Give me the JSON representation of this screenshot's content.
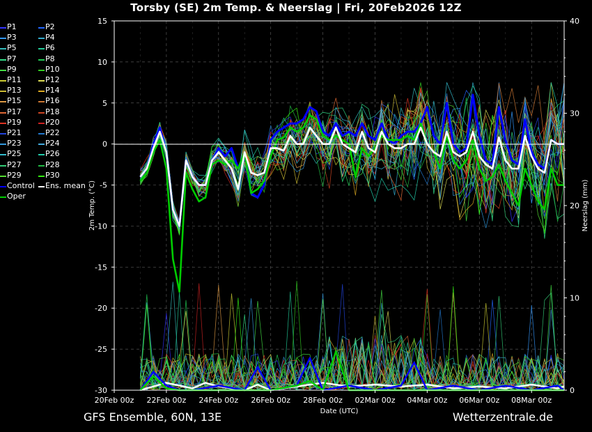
{
  "title": "Torsby  (SE)  2m Temp. & Neerslag | Fri, 20Feb2026 12Z",
  "footer_left": "GFS Ensemble, 60N, 13E",
  "footer_right": "Wetterzentrale.de",
  "chart_data": {
    "type": "line",
    "title": "Torsby  (SE)  2m Temp. & Neerslag | Fri, 20Feb2026 12Z",
    "xlabel": "Date (UTC)",
    "ylabel": "2m Temp. (°C)",
    "y2label": "Neerslag (mm)",
    "ylim": [
      -30,
      15
    ],
    "y2lim": [
      0,
      40
    ],
    "x_ticks": [
      "20Feb 00z",
      "22Feb 00z",
      "24Feb 00z",
      "26Feb 00z",
      "28Feb 00z",
      "02Mar 00z",
      "04Mar 00z",
      "06Mar 00z",
      "08Mar 00z"
    ],
    "y_ticks": [
      15,
      10,
      5,
      0,
      -5,
      -10,
      -15,
      -20,
      -25,
      -30
    ],
    "y2_ticks": [
      40,
      30,
      20,
      10,
      0
    ],
    "grid": true,
    "legend_position": "left",
    "legend": [
      {
        "name": "P1",
        "color": "#3333ff"
      },
      {
        "name": "P2",
        "color": "#2266ff"
      },
      {
        "name": "P3",
        "color": "#3399ff"
      },
      {
        "name": "P4",
        "color": "#33aacc"
      },
      {
        "name": "P5",
        "color": "#33bbbb"
      },
      {
        "name": "P6",
        "color": "#22cc99"
      },
      {
        "name": "P7",
        "color": "#33dd88"
      },
      {
        "name": "P8",
        "color": "#22cc55"
      },
      {
        "name": "P9",
        "color": "#44dd44"
      },
      {
        "name": "P10",
        "color": "#33cc22"
      },
      {
        "name": "P11",
        "color": "#cccc33"
      },
      {
        "name": "P12",
        "color": "#dddd55"
      },
      {
        "name": "P13",
        "color": "#ccbb33"
      },
      {
        "name": "P14",
        "color": "#ddaa22"
      },
      {
        "name": "P15",
        "color": "#dd9944"
      },
      {
        "name": "P16",
        "color": "#cc7733"
      },
      {
        "name": "P17",
        "color": "#dd6633"
      },
      {
        "name": "P18",
        "color": "#cc4422"
      },
      {
        "name": "P19",
        "color": "#dd3322"
      },
      {
        "name": "P20",
        "color": "#cc2222"
      },
      {
        "name": "P21",
        "color": "#2244dd"
      },
      {
        "name": "P22",
        "color": "#2277cc"
      },
      {
        "name": "P23",
        "color": "#3399dd"
      },
      {
        "name": "P24",
        "color": "#44aadd"
      },
      {
        "name": "P25",
        "color": "#33bbcc"
      },
      {
        "name": "P26",
        "color": "#22ccaa"
      },
      {
        "name": "P27",
        "color": "#33cc77"
      },
      {
        "name": "P28",
        "color": "#22bb44"
      },
      {
        "name": "P29",
        "color": "#55dd33"
      },
      {
        "name": "P30",
        "color": "#33ee11"
      },
      {
        "name": "Control",
        "color": "#0000ff"
      },
      {
        "name": "Ens. mean",
        "color": "#ffffff"
      },
      {
        "name": "Oper",
        "color": "#00cc00"
      }
    ],
    "x_range_days": [
      0,
      17.25
    ],
    "series": [
      {
        "name": "Ens. mean",
        "color": "#ffffff",
        "x": [
          1.0,
          1.25,
          1.5,
          1.75,
          2.0,
          2.25,
          2.5,
          2.75,
          3.0,
          3.25,
          3.5,
          3.75,
          4.0,
          4.25,
          4.5,
          4.75,
          5.0,
          5.25,
          5.5,
          5.75,
          6.0,
          6.25,
          6.5,
          6.75,
          7.0,
          7.25,
          7.5,
          7.75,
          8.0,
          8.25,
          8.5,
          8.75,
          9.0,
          9.25,
          9.5,
          9.75,
          10.0,
          10.25,
          10.5,
          10.75,
          11.0,
          11.25,
          11.5,
          11.75,
          12.0,
          12.25,
          12.5,
          12.75,
          13.0,
          13.25,
          13.5,
          13.75,
          14.0,
          14.25,
          14.5,
          14.75,
          15.0,
          15.25,
          15.5,
          15.75,
          16.0,
          16.25,
          16.5,
          16.75,
          17.0,
          17.25
        ],
        "values": [
          -4.0,
          -3.0,
          -0.5,
          1.5,
          -1.0,
          -8.0,
          -10.0,
          -2.0,
          -4.0,
          -5.0,
          -5.0,
          -2.0,
          -1.0,
          -2.0,
          -3.0,
          -5.5,
          -1.0,
          -3.5,
          -3.8,
          -3.5,
          -0.5,
          -0.5,
          -0.8,
          1.0,
          0.0,
          0.0,
          2.0,
          1.0,
          0.0,
          0.0,
          2.0,
          0.0,
          -0.5,
          -1.0,
          1.5,
          -0.5,
          -1.0,
          1.5,
          0.0,
          -0.5,
          -0.5,
          0.0,
          0.0,
          2.0,
          0.0,
          -1.0,
          -1.5,
          1.5,
          -1.0,
          -1.5,
          -1.0,
          1.5,
          -1.5,
          -2.5,
          -3.0,
          0.8,
          -2.0,
          -3.0,
          -3.0,
          1.0,
          -1.5,
          -3.0,
          -3.5,
          0.5,
          0.0,
          0.0
        ]
      },
      {
        "name": "Control",
        "color": "#0000ff",
        "x": [
          1.0,
          1.25,
          1.5,
          1.75,
          2.0,
          2.25,
          2.5,
          2.75,
          3.0,
          3.25,
          3.5,
          3.75,
          4.0,
          4.25,
          4.5,
          4.75,
          5.0,
          5.25,
          5.5,
          5.75,
          6.0,
          6.25,
          6.5,
          6.75,
          7.0,
          7.25,
          7.5,
          7.75,
          8.0,
          8.25,
          8.5,
          8.75,
          9.0,
          9.25,
          9.5,
          9.75,
          10.0,
          10.25,
          10.5,
          10.75,
          11.0,
          11.25,
          11.5,
          11.75,
          12.0,
          12.25,
          12.5,
          12.75,
          13.0,
          13.25,
          13.5,
          13.75,
          14.0,
          14.25,
          14.5,
          14.75,
          15.0,
          15.25,
          15.5,
          15.75,
          16.0,
          16.25,
          16.5,
          16.75,
          17.0,
          17.25
        ],
        "values": [
          -4.0,
          -3.0,
          0.0,
          2.0,
          -1.0,
          -8.0,
          -10.0,
          -2.0,
          -4.0,
          -5.0,
          -5.0,
          -2.0,
          -0.5,
          -1.5,
          -0.5,
          -3.0,
          -1.0,
          -6.0,
          -6.5,
          -5.0,
          0.5,
          1.5,
          2.0,
          2.5,
          2.5,
          3.0,
          4.5,
          4.0,
          1.5,
          1.0,
          2.5,
          1.0,
          1.5,
          1.0,
          2.5,
          1.0,
          0.5,
          2.5,
          0.5,
          0.0,
          1.0,
          1.5,
          1.5,
          2.5,
          4.5,
          1.0,
          0.0,
          5.0,
          0.0,
          -1.0,
          -0.5,
          6.0,
          1.0,
          -2.0,
          -2.5,
          4.5,
          0.5,
          -2.0,
          -2.5,
          3.0,
          -1.0,
          -2.5,
          -3.0,
          0.5,
          0.0,
          0.0
        ]
      },
      {
        "name": "Oper",
        "color": "#00cc00",
        "x": [
          1.0,
          1.25,
          1.5,
          1.75,
          2.0,
          2.25,
          2.5,
          2.75,
          3.0,
          3.25,
          3.5,
          3.75,
          4.0,
          4.25,
          4.5,
          4.75,
          5.0,
          5.25,
          5.5,
          5.75,
          6.0,
          6.25,
          6.5,
          6.75,
          7.0,
          7.25,
          7.5,
          7.75,
          8.0,
          8.25,
          8.5,
          8.75,
          9.0,
          9.25,
          9.5,
          9.75,
          10.0,
          10.25,
          10.5,
          10.75,
          11.0,
          11.25,
          11.5,
          11.75,
          12.0,
          12.25,
          12.5,
          12.75,
          13.0,
          13.25,
          13.5,
          13.75,
          14.0,
          14.25,
          14.5,
          14.75,
          15.0,
          15.25,
          15.5,
          15.75,
          16.0,
          16.25,
          16.5,
          16.75,
          17.0,
          17.25
        ],
        "values": [
          -4.5,
          -3.5,
          -1.0,
          0.5,
          -3.0,
          -14.0,
          -18.0,
          -3.5,
          -5.5,
          -7.0,
          -6.5,
          -2.5,
          -2.0,
          -2.5,
          -2.0,
          -3.0,
          -1.0,
          -6.0,
          -5.5,
          -4.5,
          -1.5,
          0.5,
          0.8,
          2.0,
          1.5,
          2.0,
          3.5,
          3.0,
          1.0,
          0.5,
          1.0,
          0.5,
          0.0,
          -4.0,
          -0.5,
          -1.5,
          -0.5,
          1.0,
          0.5,
          0.5,
          0.5,
          1.0,
          0.5,
          2.5,
          0.0,
          -1.0,
          -3.0,
          1.0,
          -2.0,
          -3.0,
          -2.0,
          0.5,
          -3.0,
          -4.5,
          -4.0,
          -2.5,
          -4.5,
          -6.0,
          -7.5,
          -3.0,
          -5.0,
          -7.0,
          -8.0,
          -3.0,
          -5.0,
          -5.0
        ]
      }
    ],
    "precip_series": [
      {
        "name": "Ens. mean",
        "color": "#ffffff",
        "x": [
          1.0,
          2.0,
          3.0,
          3.5,
          4.0,
          5.0,
          5.5,
          6.0,
          7.0,
          8.0,
          9.0,
          10.0,
          11.0,
          12.0,
          13.0,
          14.0,
          15.0,
          16.0,
          17.0,
          17.25
        ],
        "values": [
          0.0,
          0.8,
          0.2,
          0.8,
          0.4,
          0.0,
          0.6,
          0.0,
          0.4,
          0.8,
          0.4,
          0.6,
          0.4,
          0.6,
          0.2,
          0.4,
          0.2,
          0.6,
          0.2,
          0.4
        ]
      },
      {
        "name": "Control",
        "color": "#0000ff",
        "x": [
          1.0,
          1.5,
          2.0,
          2.5,
          3.0,
          4.0,
          5.0,
          5.5,
          6.0,
          7.0,
          7.5,
          8.0,
          9.0,
          10.0,
          11.0,
          11.5,
          12.0,
          13.0,
          14.0,
          15.0,
          16.0,
          17.0,
          17.25
        ],
        "values": [
          0.0,
          2.0,
          0.5,
          0.0,
          0.0,
          0.5,
          0.0,
          2.5,
          0.0,
          0.5,
          3.5,
          0.0,
          0.5,
          0.0,
          0.5,
          3.0,
          0.0,
          0.5,
          0.0,
          0.5,
          0.0,
          0.5,
          0.0
        ]
      },
      {
        "name": "Oper",
        "color": "#00cc00",
        "x": [
          1.0,
          1.5,
          2.0,
          2.5,
          3.0,
          4.0,
          5.0,
          6.0,
          7.0,
          7.5,
          8.0,
          8.5,
          9.0,
          10.0,
          11.0,
          12.0,
          13.0,
          14.0,
          15.0,
          16.0,
          17.0,
          17.25
        ],
        "values": [
          0.0,
          1.5,
          0.2,
          0.0,
          0.0,
          0.0,
          0.0,
          0.0,
          0.5,
          1.0,
          0.0,
          4.2,
          0.0,
          0.0,
          0.0,
          0.0,
          0.0,
          0.0,
          0.0,
          0.0,
          0.0,
          0.0
        ]
      }
    ]
  }
}
